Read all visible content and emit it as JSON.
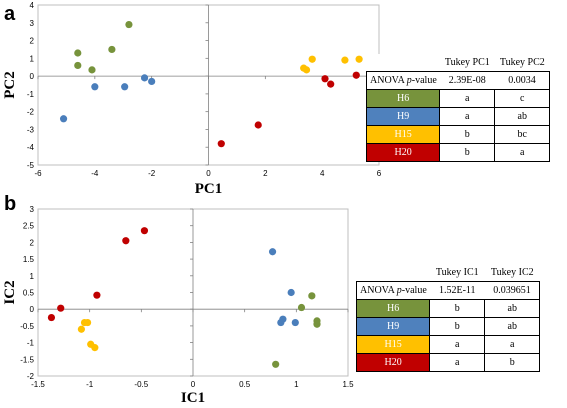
{
  "panels": [
    {
      "letter": "a",
      "chart_data": {
        "type": "scatter",
        "title": "",
        "xlabel": "PC1",
        "ylabel": "PC2",
        "xlim": [
          -6,
          6
        ],
        "ylim": [
          -5,
          4
        ],
        "xticks": [
          -6,
          -4,
          -2,
          0,
          2,
          4,
          6
        ],
        "yticks": [
          -5,
          -4,
          -3,
          -2,
          -1,
          0,
          1,
          2,
          3,
          4
        ],
        "grid": false,
        "series": [
          {
            "group": "H6",
            "color": "#77933c",
            "points": [
              [
                -4.6,
                1.3
              ],
              [
                -4.6,
                0.6
              ],
              [
                -4.1,
                0.35
              ],
              [
                -3.4,
                1.5
              ],
              [
                -2.8,
                2.9
              ]
            ]
          },
          {
            "group": "H9",
            "color": "#4a7ebb",
            "points": [
              [
                -5.1,
                -2.4
              ],
              [
                -4.0,
                -0.6
              ],
              [
                -2.95,
                -0.6
              ],
              [
                -2.25,
                -0.1
              ],
              [
                -2.0,
                -0.3
              ]
            ]
          },
          {
            "group": "H15",
            "color": "#ffc000",
            "points": [
              [
                3.35,
                0.45
              ],
              [
                3.45,
                0.35
              ],
              [
                3.65,
                0.95
              ],
              [
                4.8,
                0.9
              ],
              [
                5.3,
                0.95
              ]
            ]
          },
          {
            "group": "H20",
            "color": "#c00000",
            "points": [
              [
                0.45,
                -3.8
              ],
              [
                1.75,
                -2.75
              ],
              [
                4.1,
                -0.15
              ],
              [
                4.3,
                -0.45
              ],
              [
                5.2,
                0.05
              ]
            ]
          }
        ]
      },
      "table": {
        "col_headers": [
          "Tukey PC1",
          "Tukey PC2"
        ],
        "anova_label": "ANOVA ",
        "anova_p": "p",
        "anova_suffix": "-value",
        "anova_values": [
          "2.39E-08",
          "0.0034"
        ],
        "rows": [
          {
            "group": "H6",
            "color": "#77933c",
            "values": [
              "a",
              "c"
            ]
          },
          {
            "group": "H9",
            "color": "#4f81bd",
            "values": [
              "a",
              "ab"
            ]
          },
          {
            "group": "H15",
            "color": "#ffc000",
            "values": [
              "b",
              "bc"
            ]
          },
          {
            "group": "H20",
            "color": "#c00000",
            "values": [
              "b",
              "a"
            ]
          }
        ]
      }
    },
    {
      "letter": "b",
      "chart_data": {
        "type": "scatter",
        "title": "",
        "xlabel": "IC1",
        "ylabel": "IC2",
        "xlim": [
          -1.5,
          1.5
        ],
        "ylim": [
          -2,
          3
        ],
        "xticks": [
          -1.5,
          -1,
          -0.5,
          0,
          0.5,
          1,
          1.5
        ],
        "yticks": [
          -2,
          -1.5,
          -1,
          -0.5,
          0,
          0.5,
          1,
          1.5,
          2,
          2.5,
          3
        ],
        "grid": false,
        "series": [
          {
            "group": "H6",
            "color": "#77933c",
            "points": [
              [
                0.8,
                -1.65
              ],
              [
                1.05,
                0.05
              ],
              [
                1.15,
                0.4
              ],
              [
                1.2,
                -0.35
              ],
              [
                1.2,
                -0.45
              ]
            ]
          },
          {
            "group": "H9",
            "color": "#4a7ebb",
            "points": [
              [
                0.77,
                1.72
              ],
              [
                0.85,
                -0.4
              ],
              [
                0.87,
                -0.3
              ],
              [
                0.95,
                0.5
              ],
              [
                0.99,
                -0.4
              ]
            ]
          },
          {
            "group": "H15",
            "color": "#ffc000",
            "points": [
              [
                -1.08,
                -0.6
              ],
              [
                -1.05,
                -0.4
              ],
              [
                -1.02,
                -0.4
              ],
              [
                -0.99,
                -1.05
              ],
              [
                -0.95,
                -1.15
              ]
            ]
          },
          {
            "group": "H20",
            "color": "#c00000",
            "points": [
              [
                -1.37,
                -0.25
              ],
              [
                -1.28,
                0.03
              ],
              [
                -0.93,
                0.42
              ],
              [
                -0.65,
                2.05
              ],
              [
                -0.47,
                2.35
              ]
            ]
          }
        ]
      },
      "table": {
        "col_headers": [
          "Tukey IC1",
          "Tukey IC2"
        ],
        "anova_label": "ANOVA ",
        "anova_p": "p",
        "anova_suffix": "-value",
        "anova_values": [
          "1.52E-11",
          "0.039651"
        ],
        "rows": [
          {
            "group": "H6",
            "color": "#77933c",
            "values": [
              "b",
              "ab"
            ]
          },
          {
            "group": "H9",
            "color": "#4f81bd",
            "values": [
              "b",
              "ab"
            ]
          },
          {
            "group": "H15",
            "color": "#ffc000",
            "values": [
              "a",
              "a"
            ]
          },
          {
            "group": "H20",
            "color": "#c00000",
            "values": [
              "a",
              "b"
            ]
          }
        ]
      }
    }
  ]
}
